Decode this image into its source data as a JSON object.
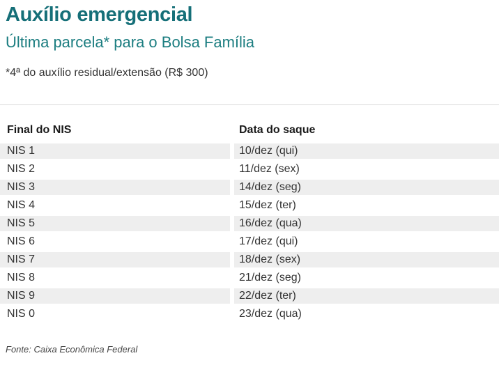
{
  "chart_data": {
    "type": "table",
    "title": "Auxílio emergencial",
    "subtitle": "Última parcela* para o Bolsa Família",
    "note": "*4ª do auxílio residual/extensão (R$ 300)",
    "columns": [
      "Final do NIS",
      "Data do saque"
    ],
    "rows": [
      [
        "NIS 1",
        "10/dez (qui)"
      ],
      [
        "NIS 2",
        "11/dez (sex)"
      ],
      [
        "NIS 3",
        "14/dez (seg)"
      ],
      [
        "NIS 4",
        "15/dez (ter)"
      ],
      [
        "NIS 5",
        "16/dez (qua)"
      ],
      [
        "NIS 6",
        "17/dez (qui)"
      ],
      [
        "NIS 7",
        "18/dez (sex)"
      ],
      [
        "NIS 8",
        "21/dez (seg)"
      ],
      [
        "NIS 9",
        "22/dez (ter)"
      ],
      [
        "NIS 0",
        "23/dez (qua)"
      ]
    ],
    "source": "Fonte: Caixa Econômica Federal",
    "layout": {
      "legend": "none",
      "grid": "off",
      "row_stripe_color": "#eeeeee",
      "title_color": "#156f78",
      "subtitle_color": "#1b7d80"
    }
  }
}
